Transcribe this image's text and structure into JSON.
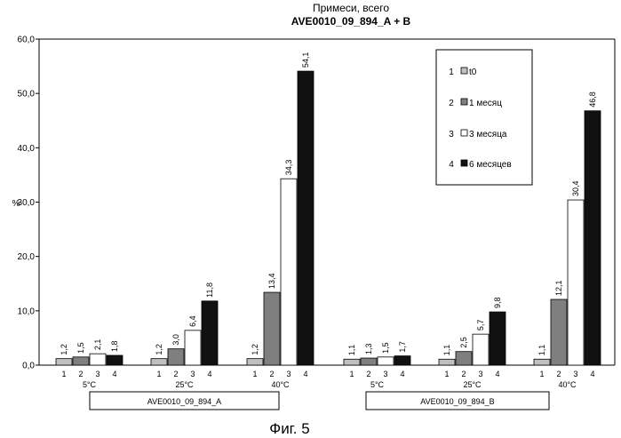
{
  "chart_data": {
    "type": "bar",
    "title": "Примеси, всего",
    "subtitle": "AVE0010_09_894_A + B",
    "ylabel": "%",
    "ylim": [
      0,
      60
    ],
    "yticks": [
      "0,0",
      "10,0",
      "20,0",
      "30,0",
      "40,0",
      "50,0",
      "60,0"
    ],
    "grid": false,
    "legend_position": "top-right",
    "series": [
      {
        "id": "1",
        "name": "t0",
        "color": "#c0c0c0"
      },
      {
        "id": "2",
        "name": "1 месяц",
        "color": "#7f7f7f"
      },
      {
        "id": "3",
        "name": "3 месяца",
        "color": "#ffffff"
      },
      {
        "id": "4",
        "name": "6 месяцев",
        "color": "#111111"
      }
    ],
    "bar_numbers": [
      "1",
      "2",
      "3",
      "4"
    ],
    "groups": [
      {
        "sample": "AVE0010_09_894_A",
        "condition": "5°C",
        "values": [
          1.2,
          1.5,
          2.1,
          1.8
        ],
        "labels": [
          "1,2",
          "1,5",
          "2,1",
          "1,8"
        ]
      },
      {
        "sample": "AVE0010_09_894_A",
        "condition": "25°C",
        "values": [
          1.2,
          3.0,
          6.4,
          11.8
        ],
        "labels": [
          "1,2",
          "3,0",
          "6,4",
          "11,8"
        ]
      },
      {
        "sample": "AVE0010_09_894_A",
        "condition": "40°C",
        "values": [
          1.2,
          13.4,
          34.3,
          54.1
        ],
        "labels": [
          "1,2",
          "13,4",
          "34,3",
          "54,1"
        ]
      },
      {
        "sample": "AVE0010_09_894_B",
        "condition": "5°C",
        "values": [
          1.1,
          1.3,
          1.5,
          1.7
        ],
        "labels": [
          "1,1",
          "1,3",
          "1,5",
          "1,7"
        ]
      },
      {
        "sample": "AVE0010_09_894_B",
        "condition": "25°C",
        "values": [
          1.1,
          2.5,
          5.7,
          9.8
        ],
        "labels": [
          "1,1",
          "2,5",
          "5,7",
          "9,8"
        ]
      },
      {
        "sample": "AVE0010_09_894_B",
        "condition": "40°C",
        "values": [
          1.1,
          12.1,
          30.4,
          46.8
        ],
        "labels": [
          "1,1",
          "12,1",
          "30,4",
          "46,8"
        ]
      }
    ],
    "samples": [
      "AVE0010_09_894_A",
      "AVE0010_09_894_B"
    ]
  },
  "caption": "Фиг. 5"
}
